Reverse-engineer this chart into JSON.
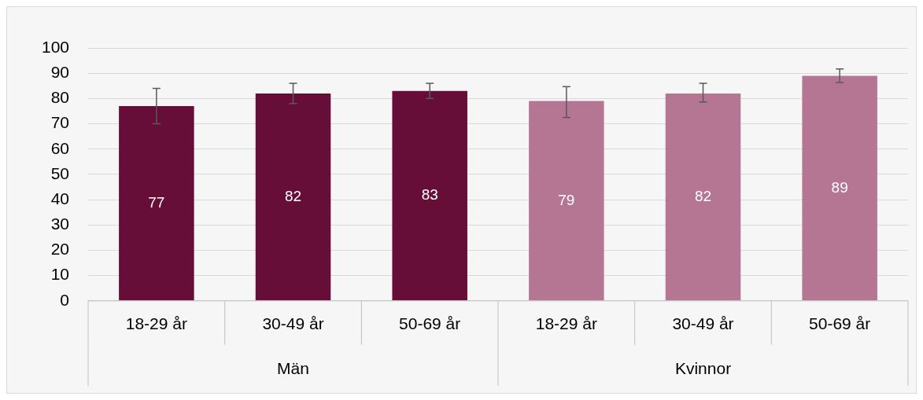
{
  "chart_data": {
    "type": "bar",
    "categories": [
      "18-29 år",
      "30-49 år",
      "50-69 år",
      "18-29 år",
      "30-49 år",
      "50-69 år"
    ],
    "values": [
      77,
      82,
      83,
      79,
      82,
      89
    ],
    "colors": [
      "#660e38",
      "#660e38",
      "#660e38",
      "#b57693",
      "#b57693",
      "#b57693"
    ],
    "errors": [
      [
        70,
        84
      ],
      [
        78,
        86
      ],
      [
        80,
        86
      ],
      [
        72.5,
        84.7
      ],
      [
        78.6,
        86
      ],
      [
        86.3,
        91.7
      ]
    ],
    "data_labels": true,
    "annotations": [
      "Män",
      "Kvinnor"
    ],
    "ylim": [
      0,
      100
    ],
    "yticks": [
      0,
      10,
      20,
      30,
      40,
      50,
      60,
      70,
      80,
      90,
      100
    ],
    "grid": "y",
    "legend": false
  }
}
